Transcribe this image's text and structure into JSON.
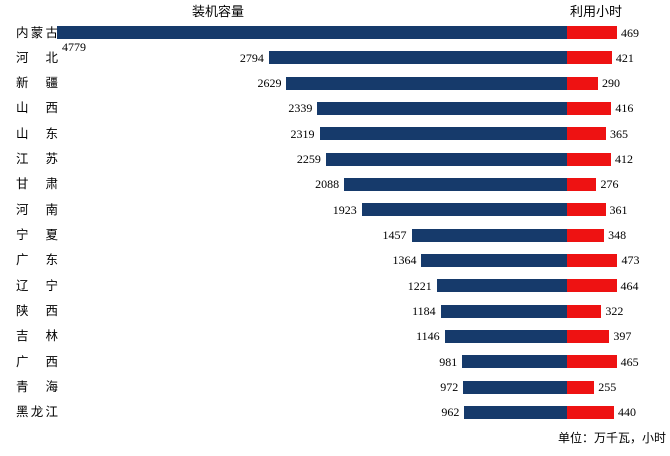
{
  "chart_data": {
    "type": "bar",
    "variant": "diverging-horizontal",
    "title_left": "装机容量",
    "title_right": "利用小时",
    "unit_note": "单位：万千瓦，小时",
    "legend_position": "top (series titles above each side)",
    "grid": false,
    "axis_lines": false,
    "categories": [
      "内蒙古",
      "河北",
      "新疆",
      "山西",
      "山东",
      "江苏",
      "甘肃",
      "河南",
      "宁夏",
      "广东",
      "辽宁",
      "陕西",
      "吉林",
      "广西",
      "青海",
      "黑龙江"
    ],
    "series": [
      {
        "name": "装机容量",
        "direction": "left",
        "color": "#163A6B",
        "values": [
          4779,
          2794,
          2629,
          2339,
          2319,
          2259,
          2088,
          1923,
          1457,
          1364,
          1221,
          1184,
          1146,
          981,
          972,
          962
        ]
      },
      {
        "name": "利用小时",
        "direction": "right",
        "color": "#EE1212",
        "values": [
          469,
          421,
          290,
          416,
          365,
          412,
          276,
          361,
          348,
          473,
          464,
          322,
          397,
          465,
          255,
          440
        ]
      }
    ]
  }
}
